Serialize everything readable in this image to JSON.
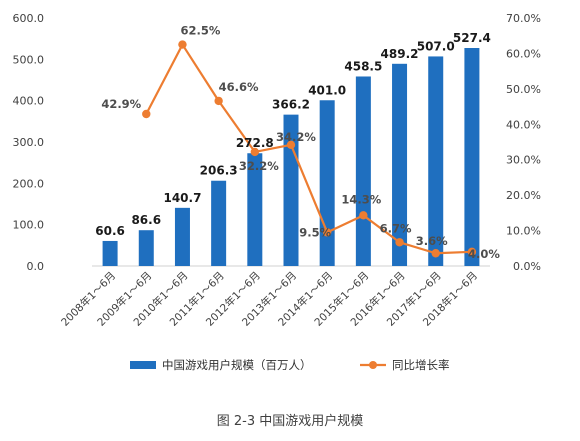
{
  "chart_data": {
    "type": "bar",
    "categories": [
      "2008年1～6月",
      "2009年1～6月",
      "2010年1～6月",
      "2011年1～6月",
      "2012年1～6月",
      "2013年1～6月",
      "2014年1～6月",
      "2015年1～6月",
      "2016年1～6月",
      "2017年1～6月",
      "2018年1～6月"
    ],
    "series": [
      {
        "name": "中国游戏用户规模（百万人）",
        "type": "bar",
        "axis": "left",
        "color": "#1F6FBF",
        "values": [
          60.6,
          86.6,
          140.7,
          206.3,
          272.8,
          366.2,
          401.0,
          458.5,
          489.2,
          507.0,
          527.4
        ],
        "labels": [
          "60.6",
          "86.6",
          "140.7",
          "206.3",
          "272.8",
          "366.2",
          "401.0",
          "458.5",
          "489.2",
          "507.0",
          "527.4"
        ]
      },
      {
        "name": "同比增长率",
        "type": "line",
        "axis": "right",
        "color": "#ED7D31",
        "values": [
          null,
          42.9,
          62.5,
          46.6,
          32.2,
          34.2,
          9.5,
          14.3,
          6.7,
          3.6,
          4.0
        ],
        "labels": [
          "",
          "42.9%",
          "62.5%",
          "46.6%",
          "32.2%",
          "34.2%",
          "9.5%",
          "14.3%",
          "6.7%",
          "3.6%",
          "4.0%"
        ]
      }
    ],
    "left_axis": {
      "min": 0,
      "max": 600,
      "ticks": [
        "0.0",
        "100.0",
        "200.0",
        "300.0",
        "400.0",
        "500.0",
        "600.0"
      ]
    },
    "right_axis": {
      "min": 0,
      "max": 70,
      "ticks": [
        "0.0%",
        "10.0%",
        "20.0%",
        "30.0%",
        "40.0%",
        "50.0%",
        "60.0%",
        "70.0%"
      ]
    },
    "grid": false,
    "legend_position": "bottom"
  },
  "caption": "图 2-3  中国游戏用户规模"
}
